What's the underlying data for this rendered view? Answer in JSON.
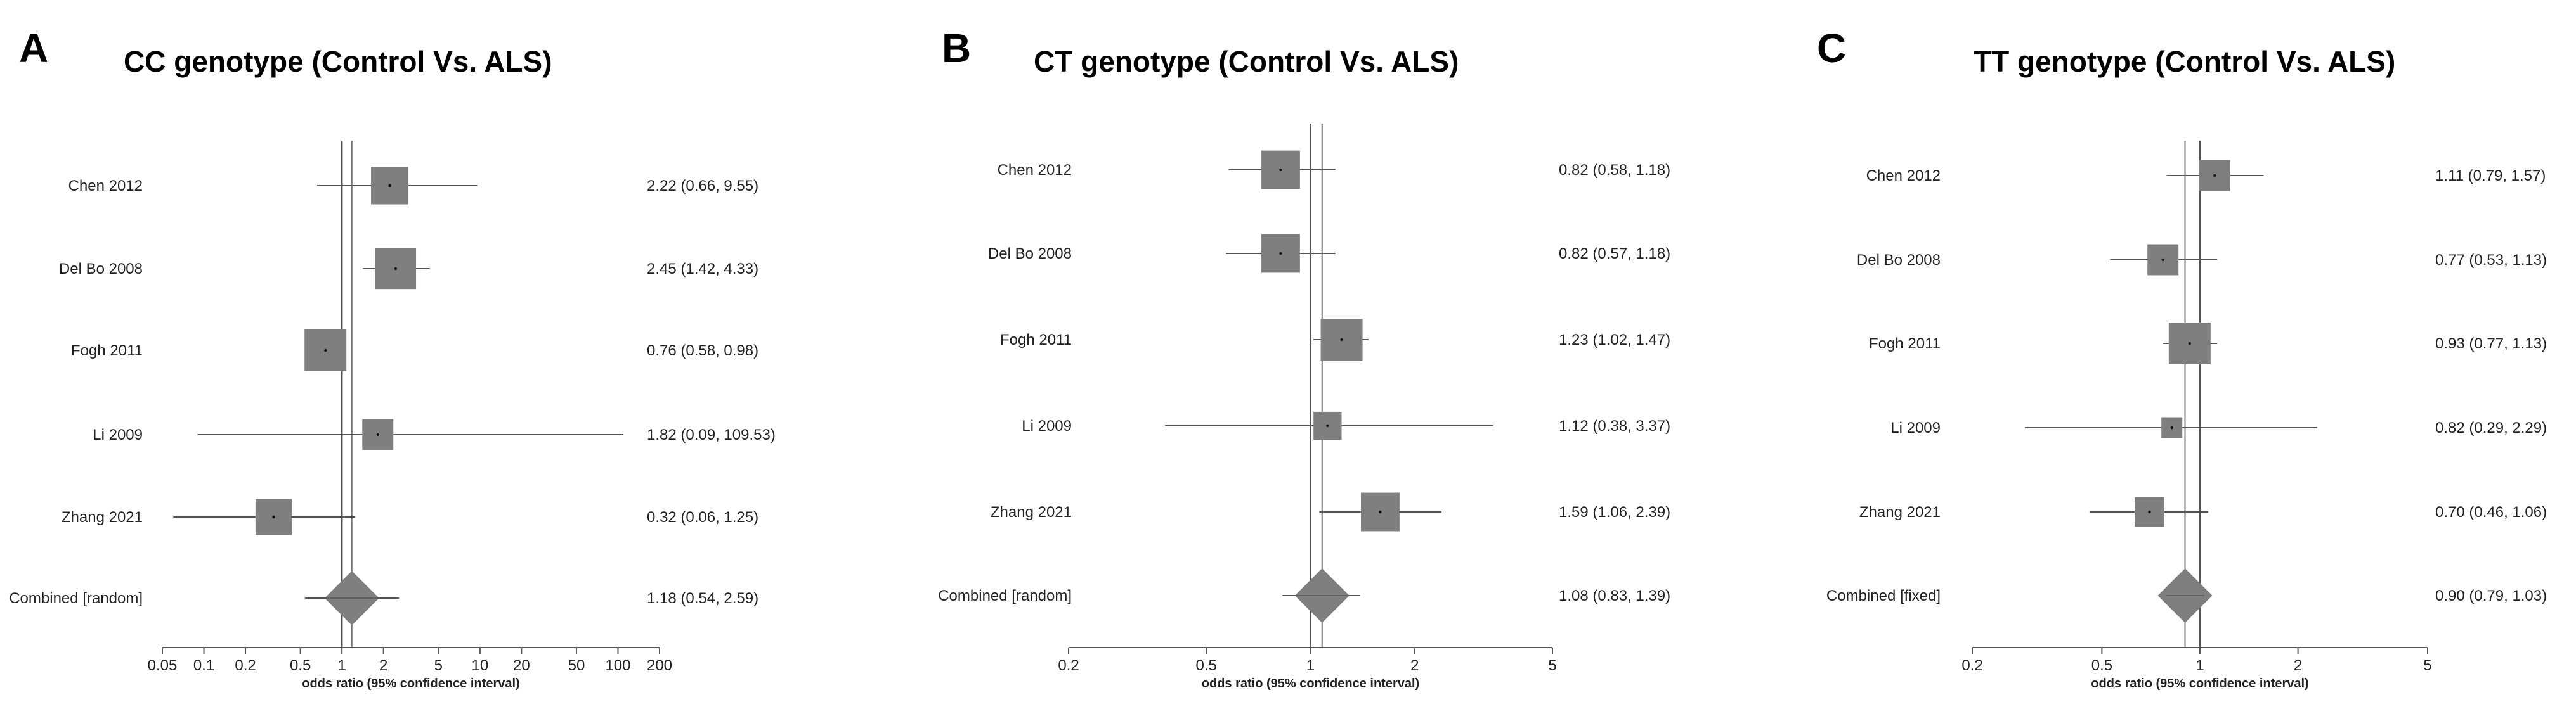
{
  "chart_data": [
    {
      "type": "forest",
      "panel": "A",
      "title": "CC genotype (Control Vs. ALS)",
      "xlabel": "odds ratio (95% confidence interval)",
      "scale": "log",
      "xlim": [
        0.05,
        200
      ],
      "ticks": [
        0.05,
        0.1,
        0.2,
        0.5,
        1,
        2,
        5,
        10,
        20,
        50,
        100,
        200
      ],
      "tick_labels": [
        "0.05",
        "0.1",
        "0.2",
        "0.5",
        "1",
        "2",
        "5",
        "10",
        "20",
        "50",
        "100",
        "200"
      ],
      "pooled_line": 1.18,
      "studies": [
        {
          "label": "Chen 2012",
          "or": 2.22,
          "lo": 0.66,
          "hi": 9.55,
          "text": "2.22 (0.66, 9.55)",
          "weight": 0.8
        },
        {
          "label": "Del Bo 2008",
          "or": 2.45,
          "lo": 1.42,
          "hi": 4.33,
          "text": "2.45 (1.42, 4.33)",
          "weight": 0.95
        },
        {
          "label": "Fogh 2011",
          "or": 0.76,
          "lo": 0.58,
          "hi": 0.98,
          "text": "0.76 (0.58, 0.98)",
          "weight": 1.0
        },
        {
          "label": "Li 2009",
          "or": 1.82,
          "lo": 0.09,
          "hi": 109.53,
          "text": "1.82 (0.09, 109.53)",
          "weight": 0.55
        },
        {
          "label": "Zhang 2021",
          "or": 0.32,
          "lo": 0.06,
          "hi": 1.25,
          "text": "0.32 (0.06, 1.25)",
          "weight": 0.75
        }
      ],
      "combined": {
        "label": "Combined [random]",
        "or": 1.18,
        "lo": 0.54,
        "hi": 2.59,
        "text": "1.18 (0.54, 2.59)"
      }
    },
    {
      "type": "forest",
      "panel": "B",
      "title": "CT  genotype (Control Vs. ALS)",
      "xlabel": "odds ratio (95% confidence interval)",
      "scale": "log",
      "xlim": [
        0.2,
        5
      ],
      "ticks": [
        0.2,
        0.5,
        1,
        2,
        5
      ],
      "tick_labels": [
        "0.2",
        "0.5",
        "1",
        "2",
        "5"
      ],
      "pooled_line": 1.08,
      "studies": [
        {
          "label": "Chen 2012",
          "or": 0.82,
          "lo": 0.58,
          "hi": 1.18,
          "text": "0.82 (0.58, 1.18)",
          "weight": 0.85
        },
        {
          "label": "Del Bo 2008",
          "or": 0.82,
          "lo": 0.57,
          "hi": 1.18,
          "text": "0.82 (0.57, 1.18)",
          "weight": 0.85
        },
        {
          "label": "Fogh 2011",
          "or": 1.23,
          "lo": 1.02,
          "hi": 1.47,
          "text": "1.23 (1.02, 1.47)",
          "weight": 1.0
        },
        {
          "label": "Li 2009",
          "or": 1.12,
          "lo": 0.38,
          "hi": 3.37,
          "text": "1.12 (0.38, 3.37)",
          "weight": 0.45
        },
        {
          "label": "Zhang 2021",
          "or": 1.59,
          "lo": 1.06,
          "hi": 2.39,
          "text": "1.59 (1.06, 2.39)",
          "weight": 0.85
        }
      ],
      "combined": {
        "label": "Combined [random]",
        "or": 1.08,
        "lo": 0.83,
        "hi": 1.39,
        "text": "1.08 (0.83, 1.39)"
      }
    },
    {
      "type": "forest",
      "panel": "C",
      "title": "TT  genotype (Control Vs. ALS)",
      "xlabel": "odds ratio (95% confidence interval)",
      "scale": "log",
      "xlim": [
        0.2,
        5
      ],
      "ticks": [
        0.2,
        0.5,
        1,
        2,
        5
      ],
      "tick_labels": [
        "0.2",
        "0.5",
        "1",
        "2",
        "5"
      ],
      "pooled_line": 0.9,
      "studies": [
        {
          "label": "Chen 2012",
          "or": 1.11,
          "lo": 0.79,
          "hi": 1.57,
          "text": "1.11 (0.79, 1.57)",
          "weight": 0.55
        },
        {
          "label": "Del Bo 2008",
          "or": 0.77,
          "lo": 0.53,
          "hi": 1.13,
          "text": "0.77 (0.53, 1.13)",
          "weight": 0.55
        },
        {
          "label": "Fogh 2011",
          "or": 0.93,
          "lo": 0.77,
          "hi": 1.13,
          "text": "0.93 (0.77, 1.13)",
          "weight": 1.0
        },
        {
          "label": "Li 2009",
          "or": 0.82,
          "lo": 0.29,
          "hi": 2.29,
          "text": "0.82 (0.29, 2.29)",
          "weight": 0.25
        },
        {
          "label": "Zhang 2021",
          "or": 0.7,
          "lo": 0.46,
          "hi": 1.06,
          "text": "0.70 (0.46, 1.06)",
          "weight": 0.5
        }
      ],
      "combined": {
        "label": "Combined [fixed]",
        "or": 0.9,
        "lo": 0.79,
        "hi": 1.03,
        "text": "0.90 (0.79, 1.03)"
      }
    }
  ]
}
